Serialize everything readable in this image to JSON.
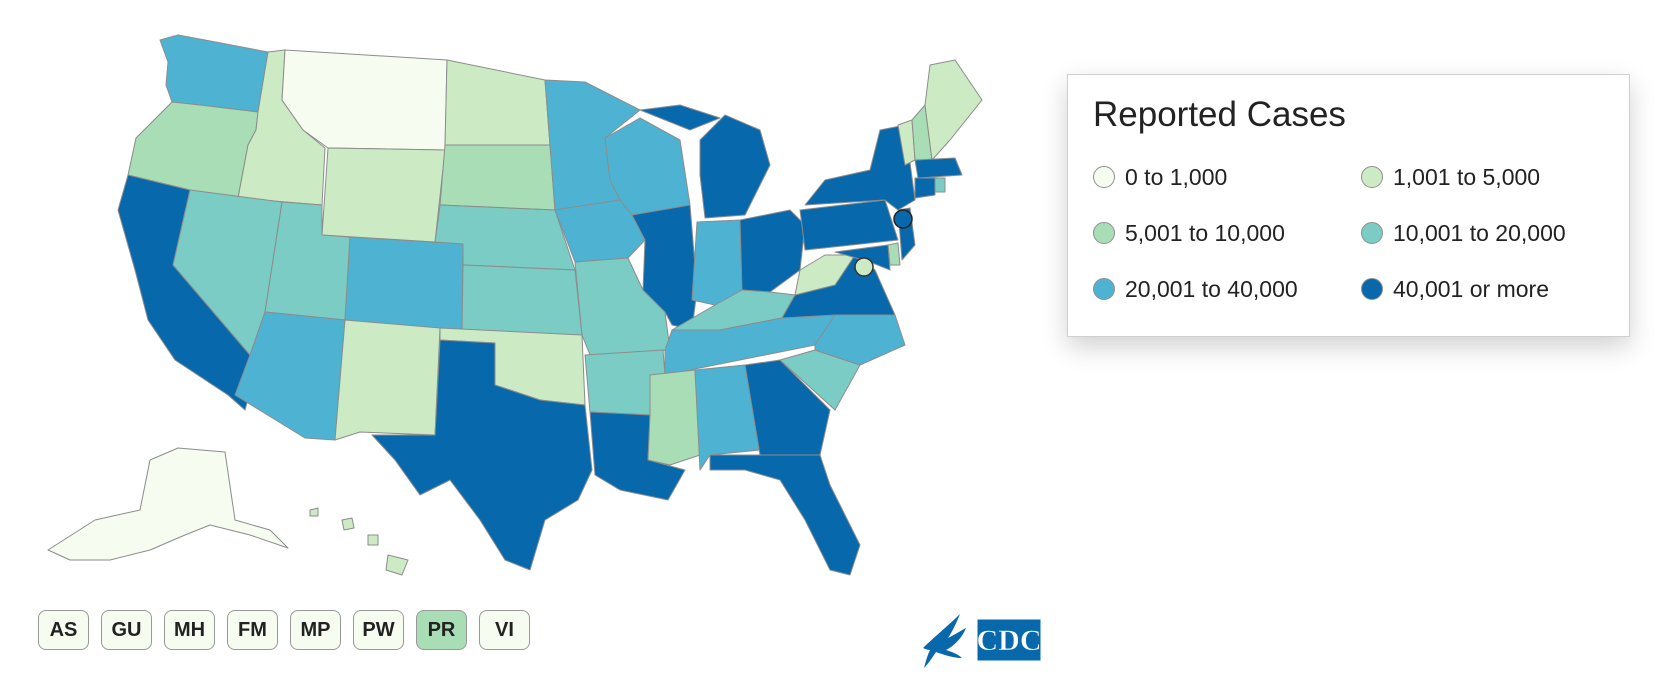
{
  "legend": {
    "title": "Reported Cases",
    "items": [
      {
        "label": "0 to 1,000",
        "color": "#f7fcf0"
      },
      {
        "label": "1,001 to 5,000",
        "color": "#ccebc5"
      },
      {
        "label": "5,001 to 10,000",
        "color": "#a8ddb5"
      },
      {
        "label": "10,001 to 20,000",
        "color": "#7bccc4"
      },
      {
        "label": "20,001 to 40,000",
        "color": "#4eb3d3"
      },
      {
        "label": "40,001 or more",
        "color": "#0868ac"
      }
    ]
  },
  "territories": [
    {
      "label": "AS",
      "color": "#f7fcf0"
    },
    {
      "label": "GU",
      "color": "#f7fcf0"
    },
    {
      "label": "MH",
      "color": "#f7fcf0"
    },
    {
      "label": "FM",
      "color": "#f7fcf0"
    },
    {
      "label": "MP",
      "color": "#f7fcf0"
    },
    {
      "label": "PW",
      "color": "#f7fcf0"
    },
    {
      "label": "PR",
      "color": "#a8ddb5"
    },
    {
      "label": "VI",
      "color": "#f7fcf0"
    }
  ],
  "logo": {
    "text": "CDC",
    "icon": "hhs-eagle-icon",
    "color": "#0868ac"
  },
  "states": {
    "WA": "#4eb3d3",
    "OR": "#a8ddb5",
    "CA": "#0868ac",
    "ID": "#ccebc5",
    "NV": "#7bccc4",
    "MT": "#f7fcf0",
    "WY": "#ccebc5",
    "UT": "#7bccc4",
    "AZ": "#4eb3d3",
    "CO": "#4eb3d3",
    "NM": "#ccebc5",
    "ND": "#ccebc5",
    "SD": "#a8ddb5",
    "NE": "#7bccc4",
    "KS": "#7bccc4",
    "OK": "#ccebc5",
    "TX": "#0868ac",
    "MN": "#4eb3d3",
    "IA": "#4eb3d3",
    "MO": "#7bccc4",
    "AR": "#7bccc4",
    "LA": "#0868ac",
    "WI": "#4eb3d3",
    "IL": "#0868ac",
    "MI": "#0868ac",
    "IN": "#4eb3d3",
    "OH": "#0868ac",
    "KY": "#7bccc4",
    "TN": "#4eb3d3",
    "MS": "#a8ddb5",
    "AL": "#4eb3d3",
    "GA": "#0868ac",
    "FL": "#0868ac",
    "SC": "#7bccc4",
    "NC": "#4eb3d3",
    "VA": "#0868ac",
    "WV": "#ccebc5",
    "PA": "#0868ac",
    "NY": "#0868ac",
    "VT": "#ccebc5",
    "NH": "#a8ddb5",
    "ME": "#ccebc5",
    "MA": "#0868ac",
    "CT": "#0868ac",
    "RI": "#7bccc4",
    "NJ": "#0868ac",
    "DE": "#a8ddb5",
    "MD": "#0868ac",
    "DC": "#ccebc5",
    "AK": "#f7fcf0",
    "HI": "#ccebc5"
  }
}
